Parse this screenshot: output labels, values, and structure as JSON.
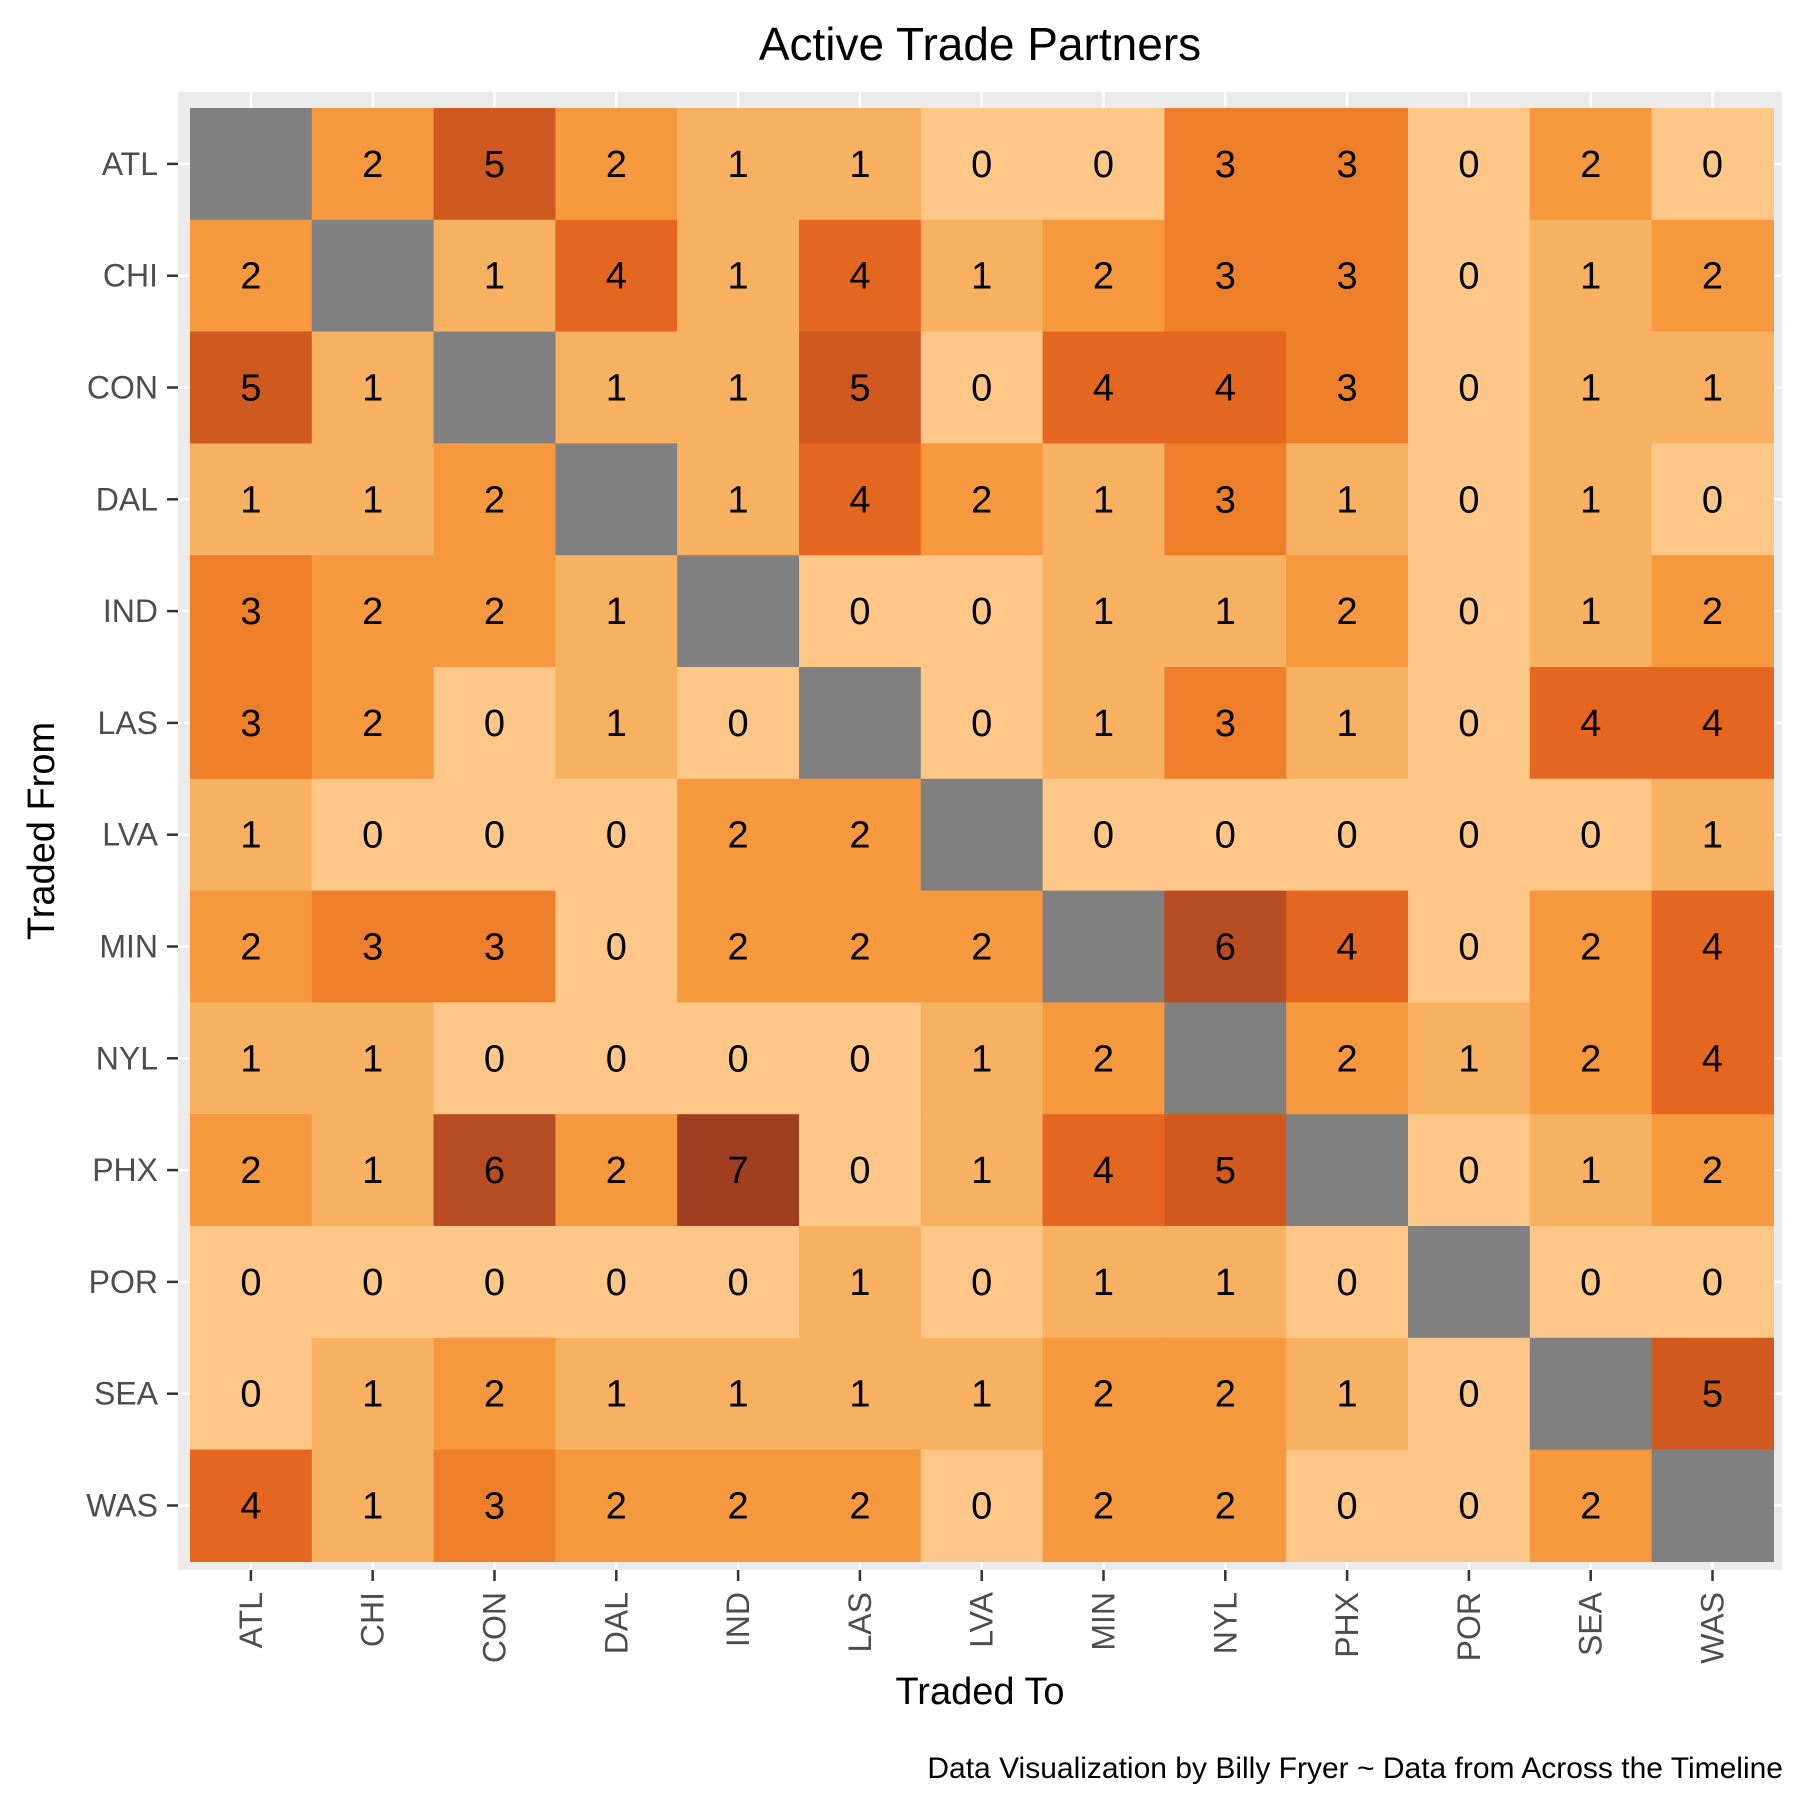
{
  "chart_data": {
    "type": "heatmap",
    "title": "Active Trade Partners",
    "xlabel": "Traded To",
    "ylabel": "Traded From",
    "caption": "Data Visualization by Billy Fryer ~ Data from Across the Timeline",
    "x_categories": [
      "ATL",
      "CHI",
      "CON",
      "DAL",
      "IND",
      "LAS",
      "LVA",
      "MIN",
      "NYL",
      "PHX",
      "POR",
      "SEA",
      "WAS"
    ],
    "y_categories": [
      "ATL",
      "CHI",
      "CON",
      "DAL",
      "IND",
      "LAS",
      "LVA",
      "MIN",
      "NYL",
      "PHX",
      "POR",
      "SEA",
      "WAS"
    ],
    "values": [
      [
        null,
        2,
        5,
        2,
        1,
        1,
        0,
        0,
        3,
        3,
        0,
        2,
        0
      ],
      [
        2,
        null,
        1,
        4,
        1,
        4,
        1,
        2,
        3,
        3,
        0,
        1,
        2
      ],
      [
        5,
        1,
        null,
        1,
        1,
        5,
        0,
        4,
        4,
        3,
        0,
        1,
        1
      ],
      [
        1,
        1,
        2,
        null,
        1,
        4,
        2,
        1,
        3,
        1,
        0,
        1,
        0
      ],
      [
        3,
        2,
        2,
        1,
        null,
        0,
        0,
        1,
        1,
        2,
        0,
        1,
        2
      ],
      [
        3,
        2,
        0,
        1,
        0,
        null,
        0,
        1,
        3,
        1,
        0,
        4,
        4
      ],
      [
        1,
        0,
        0,
        0,
        2,
        2,
        null,
        0,
        0,
        0,
        0,
        0,
        1
      ],
      [
        2,
        3,
        3,
        0,
        2,
        2,
        2,
        null,
        6,
        4,
        0,
        2,
        4
      ],
      [
        1,
        1,
        0,
        0,
        0,
        0,
        1,
        2,
        null,
        2,
        1,
        2,
        4
      ],
      [
        2,
        1,
        6,
        2,
        7,
        0,
        1,
        4,
        5,
        null,
        0,
        1,
        2
      ],
      [
        0,
        0,
        0,
        0,
        0,
        1,
        0,
        1,
        1,
        0,
        null,
        0,
        0
      ],
      [
        0,
        1,
        2,
        1,
        1,
        1,
        1,
        2,
        2,
        1,
        0,
        null,
        5
      ],
      [
        4,
        1,
        3,
        2,
        2,
        2,
        0,
        2,
        2,
        0,
        0,
        2,
        null
      ]
    ],
    "value_colors": {
      "0": "#fec687",
      "1": "#f8b061",
      "2": "#f5983e",
      "3": "#ee7f2a",
      "4": "#e4661f",
      "5": "#d05920",
      "6": "#b84d23",
      "7": "#9f3e21",
      "missing": "#808080"
    },
    "grid": true,
    "legend": "none",
    "panel_background": "#ebebeb"
  }
}
